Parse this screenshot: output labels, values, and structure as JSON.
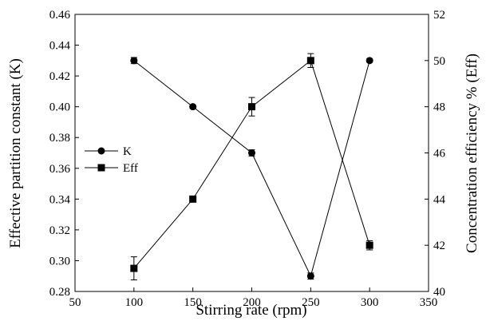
{
  "chart_data": {
    "type": "line",
    "title": "",
    "xlabel": "Stirring rate (rpm)",
    "ylabel": "Effective partition constant (K)",
    "y2label": "Concentration efficiency % (Eff)",
    "xlim": [
      50,
      350
    ],
    "ylim": [
      0.28,
      0.46
    ],
    "y2lim": [
      40,
      52
    ],
    "xticks": [
      "50",
      "100",
      "150",
      "200",
      "250",
      "300",
      "350"
    ],
    "yticks": [
      "0.28",
      "0.30",
      "0.32",
      "0.34",
      "0.36",
      "0.38",
      "0.40",
      "0.42",
      "0.44",
      "0.46"
    ],
    "y2ticks": [
      "40",
      "42",
      "44",
      "46",
      "48",
      "50",
      "52"
    ],
    "grid": false,
    "legend_position": "middle-left",
    "series": [
      {
        "name": "K",
        "axis": "left",
        "marker": "circle",
        "color": "#000000",
        "x": [
          100,
          150,
          200,
          250,
          300
        ],
        "y": [
          0.43,
          0.4,
          0.37,
          0.29,
          0.43
        ],
        "err": [
          0.002,
          0.001,
          0.002,
          0.002,
          0.001
        ]
      },
      {
        "name": "Eff",
        "axis": "right",
        "marker": "square",
        "color": "#000000",
        "x": [
          100,
          150,
          200,
          250,
          300
        ],
        "y": [
          41.0,
          44.0,
          48.0,
          50.0,
          42.0
        ],
        "err": [
          0.5,
          0.0,
          0.4,
          0.3,
          0.2
        ]
      }
    ]
  }
}
